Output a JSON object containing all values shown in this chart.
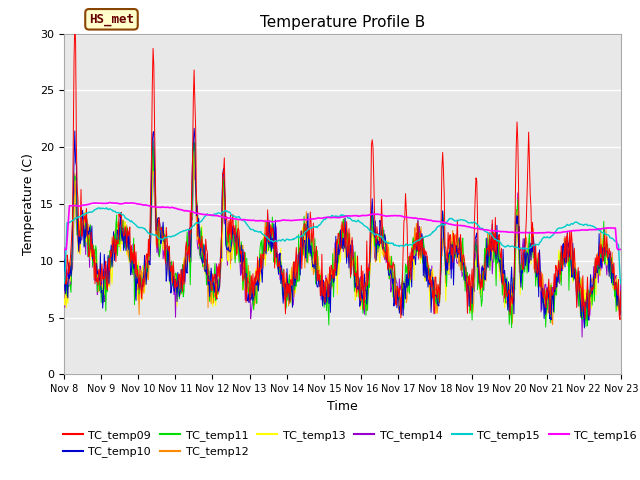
{
  "title": "Temperature Profile B",
  "xlabel": "Time",
  "ylabel": "Temperature (C)",
  "ylim": [
    0,
    30
  ],
  "x_tick_labels": [
    "Nov 8",
    "Nov 9",
    "Nov 10",
    "Nov 11",
    "Nov 12",
    "Nov 13",
    "Nov 14",
    "Nov 15",
    "Nov 16",
    "Nov 17",
    "Nov 18",
    "Nov 19",
    "Nov 20",
    "Nov 21",
    "Nov 22",
    "Nov 23"
  ],
  "annotation_text": "HS_met",
  "series_colors": {
    "TC_temp09": "#ff0000",
    "TC_temp10": "#0000cc",
    "TC_temp11": "#00dd00",
    "TC_temp12": "#ff8800",
    "TC_temp13": "#ffff00",
    "TC_temp14": "#9900cc",
    "TC_temp15": "#00cccc",
    "TC_temp16": "#ff00ff"
  },
  "bg_color": "#e8e8e8",
  "title_fontsize": 11,
  "axis_label_fontsize": 9,
  "tick_fontsize": 8,
  "legend_fontsize": 8,
  "annotation_fontsize": 9,
  "annotation_bbox_facecolor": "#ffffcc",
  "annotation_bbox_edgecolor": "#884400",
  "annotation_text_color": "#660000"
}
